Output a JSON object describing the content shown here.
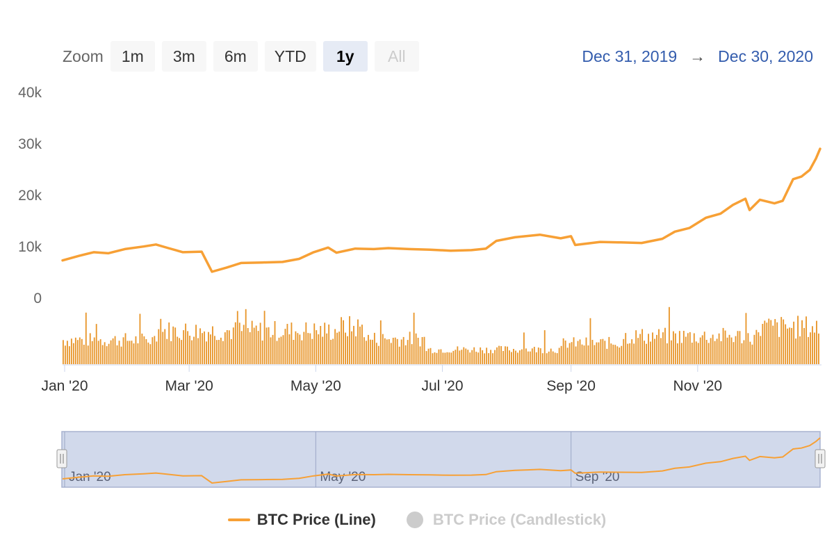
{
  "zoom": {
    "label": "Zoom",
    "buttons": [
      {
        "label": "1m",
        "state": "normal"
      },
      {
        "label": "3m",
        "state": "normal"
      },
      {
        "label": "6m",
        "state": "normal"
      },
      {
        "label": "YTD",
        "state": "normal"
      },
      {
        "label": "1y",
        "state": "selected"
      },
      {
        "label": "All",
        "state": "disabled"
      }
    ]
  },
  "range": {
    "from": "Dec 31, 2019",
    "arrow": "→",
    "to": "Dec 30, 2020"
  },
  "colors": {
    "series": "#f7a035",
    "volume": "#e8962b",
    "navigator_fill": "#c9d2e8",
    "navigator_border": "#a8b3d0",
    "axis_text": "#666666",
    "range_text": "#335cad",
    "legend_hidden": "#cccccc"
  },
  "legend": {
    "items": [
      {
        "label": "BTC Price (Line)",
        "visible": true
      },
      {
        "label": "BTC Price (Candlestick)",
        "visible": false
      }
    ]
  },
  "chart_data": {
    "type": "line",
    "title": "",
    "x_range": [
      "2019-12-31",
      "2020-12-30"
    ],
    "ylim": [
      0,
      40000
    ],
    "y_ticks": [
      "0",
      "10k",
      "20k",
      "30k",
      "40k"
    ],
    "x_ticks": [
      {
        "label": "Jan '20",
        "date": "2020-01-01"
      },
      {
        "label": "Mar '20",
        "date": "2020-03-01"
      },
      {
        "label": "May '20",
        "date": "2020-05-01"
      },
      {
        "label": "Jul '20",
        "date": "2020-07-01"
      },
      {
        "label": "Sep '20",
        "date": "2020-09-01"
      },
      {
        "label": "Nov '20",
        "date": "2020-11-01"
      }
    ],
    "navigator_ticks": [
      {
        "label": "Jan '20",
        "date": "2020-01-01"
      },
      {
        "label": "May '20",
        "date": "2020-05-01"
      },
      {
        "label": "Sep '20",
        "date": "2020-09-01"
      }
    ],
    "series": [
      {
        "name": "BTC Price (Line)",
        "points": [
          [
            "2019-12-31",
            7200
          ],
          [
            "2020-01-08",
            8100
          ],
          [
            "2020-01-15",
            8800
          ],
          [
            "2020-01-22",
            8600
          ],
          [
            "2020-01-30",
            9400
          ],
          [
            "2020-02-08",
            9900
          ],
          [
            "2020-02-14",
            10300
          ],
          [
            "2020-02-20",
            9600
          ],
          [
            "2020-02-27",
            8800
          ],
          [
            "2020-03-07",
            8900
          ],
          [
            "2020-03-12",
            5000
          ],
          [
            "2020-03-19",
            5800
          ],
          [
            "2020-03-26",
            6700
          ],
          [
            "2020-04-05",
            6800
          ],
          [
            "2020-04-15",
            6900
          ],
          [
            "2020-04-23",
            7500
          ],
          [
            "2020-04-30",
            8800
          ],
          [
            "2020-05-07",
            9700
          ],
          [
            "2020-05-11",
            8700
          ],
          [
            "2020-05-20",
            9500
          ],
          [
            "2020-05-29",
            9400
          ],
          [
            "2020-06-05",
            9600
          ],
          [
            "2020-06-15",
            9400
          ],
          [
            "2020-06-25",
            9300
          ],
          [
            "2020-07-05",
            9100
          ],
          [
            "2020-07-15",
            9200
          ],
          [
            "2020-07-22",
            9500
          ],
          [
            "2020-07-27",
            11000
          ],
          [
            "2020-08-05",
            11700
          ],
          [
            "2020-08-17",
            12200
          ],
          [
            "2020-08-27",
            11500
          ],
          [
            "2020-09-01",
            11900
          ],
          [
            "2020-09-03",
            10200
          ],
          [
            "2020-09-15",
            10800
          ],
          [
            "2020-09-25",
            10700
          ],
          [
            "2020-10-05",
            10600
          ],
          [
            "2020-10-15",
            11400
          ],
          [
            "2020-10-21",
            12800
          ],
          [
            "2020-10-28",
            13500
          ],
          [
            "2020-11-05",
            15500
          ],
          [
            "2020-11-12",
            16300
          ],
          [
            "2020-11-18",
            18000
          ],
          [
            "2020-11-24",
            19200
          ],
          [
            "2020-11-26",
            17000
          ],
          [
            "2020-12-01",
            19000
          ],
          [
            "2020-12-08",
            18300
          ],
          [
            "2020-12-12",
            18800
          ],
          [
            "2020-12-17",
            23000
          ],
          [
            "2020-12-21",
            23500
          ],
          [
            "2020-12-25",
            24800
          ],
          [
            "2020-12-28",
            27000
          ],
          [
            "2020-12-30",
            28900
          ]
        ]
      }
    ]
  }
}
